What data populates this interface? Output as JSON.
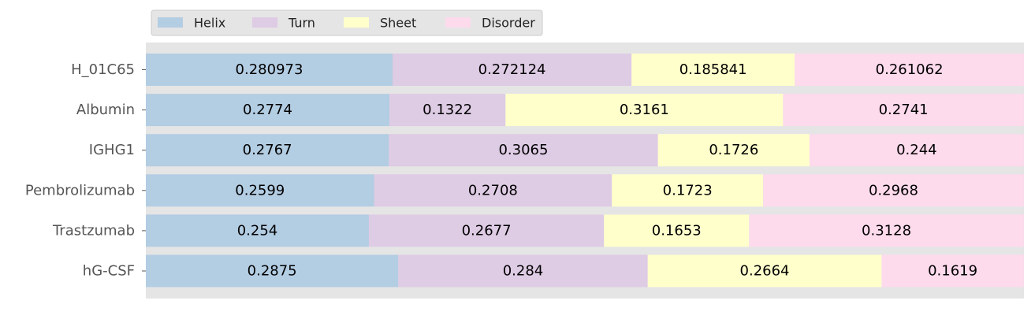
{
  "chart_data": {
    "type": "bar",
    "orientation": "horizontal",
    "stacked": true,
    "title": "",
    "xlabel": "",
    "ylabel": "",
    "xlim": [
      0,
      1
    ],
    "grid": false,
    "background_color": "#e5e5e5",
    "legend_placement": "top-left",
    "categories": [
      "H_01C65",
      "Albumin",
      "IGHG1",
      "Pembrolizumab",
      "Trastzumab",
      "hG-CSF"
    ],
    "series": [
      {
        "name": "Helix",
        "color": "#b3cde3",
        "values": [
          0.280973,
          0.2774,
          0.2767,
          0.2599,
          0.254,
          0.2875
        ],
        "labels": [
          "0.280973",
          "0.2774",
          "0.2767",
          "0.2599",
          "0.254",
          "0.2875"
        ]
      },
      {
        "name": "Turn",
        "color": "#decbe4",
        "values": [
          0.272124,
          0.1322,
          0.3065,
          0.2708,
          0.2677,
          0.284
        ],
        "labels": [
          "0.272124",
          "0.1322",
          "0.3065",
          "0.2708",
          "0.2677",
          "0.284"
        ]
      },
      {
        "name": "Sheet",
        "color": "#ffffcc",
        "values": [
          0.185841,
          0.3161,
          0.1726,
          0.1723,
          0.1653,
          0.2664
        ],
        "labels": [
          "0.185841",
          "0.3161",
          "0.1726",
          "0.1723",
          "0.1653",
          "0.2664"
        ]
      },
      {
        "name": "Disorder",
        "color": "#fddaec",
        "values": [
          0.261062,
          0.2741,
          0.244,
          0.2968,
          0.3128,
          0.1619
        ],
        "labels": [
          "0.261062",
          "0.2741",
          "0.244",
          "0.2968",
          "0.3128",
          "0.1619"
        ]
      }
    ]
  }
}
